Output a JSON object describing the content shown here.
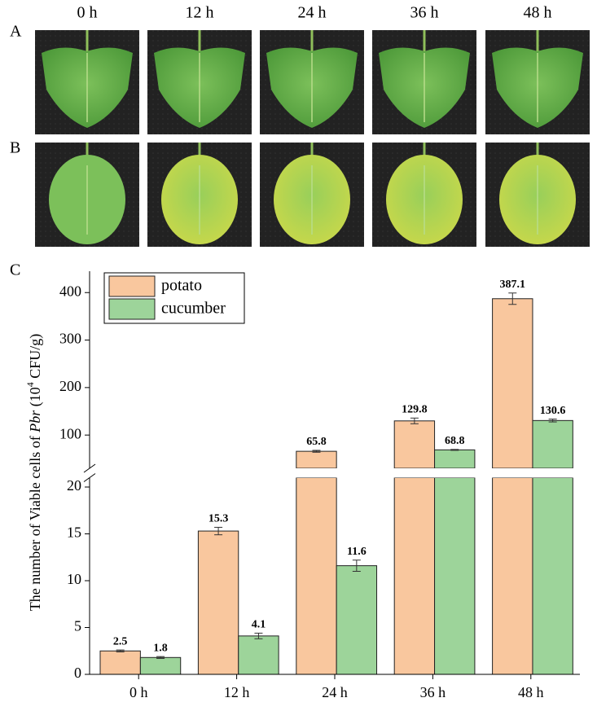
{
  "panels": {
    "row_labels": [
      "A",
      "B",
      "C"
    ],
    "time_labels": [
      "0 h",
      "12 h",
      "24 h",
      "36 h",
      "48 h"
    ]
  },
  "chart_data": {
    "type": "bar",
    "categories": [
      "0 h",
      "12 h",
      "24 h",
      "36 h",
      "48 h"
    ],
    "series": [
      {
        "name": "potato",
        "color": "#f9c79e",
        "values": [
          2.5,
          15.3,
          65.8,
          129.8,
          387.1
        ],
        "errors": [
          0.1,
          0.4,
          2,
          6,
          12
        ]
      },
      {
        "name": "cucumber",
        "color": "#9dd49a",
        "values": [
          1.8,
          4.1,
          11.6,
          68.8,
          130.6
        ],
        "errors": [
          0.1,
          0.3,
          0.6,
          1,
          3
        ]
      }
    ],
    "ylabel_parts": [
      "The number of Viable cells of ",
      "Pbr",
      " (10",
      "4",
      " CFU/g)"
    ],
    "ylim_lower": [
      0,
      21
    ],
    "yticks_lower": [
      0,
      5,
      10,
      15,
      20
    ],
    "ylim_upper": [
      30,
      445
    ],
    "yticks_upper": [
      100,
      200,
      300,
      400
    ],
    "legend": "upper left"
  }
}
